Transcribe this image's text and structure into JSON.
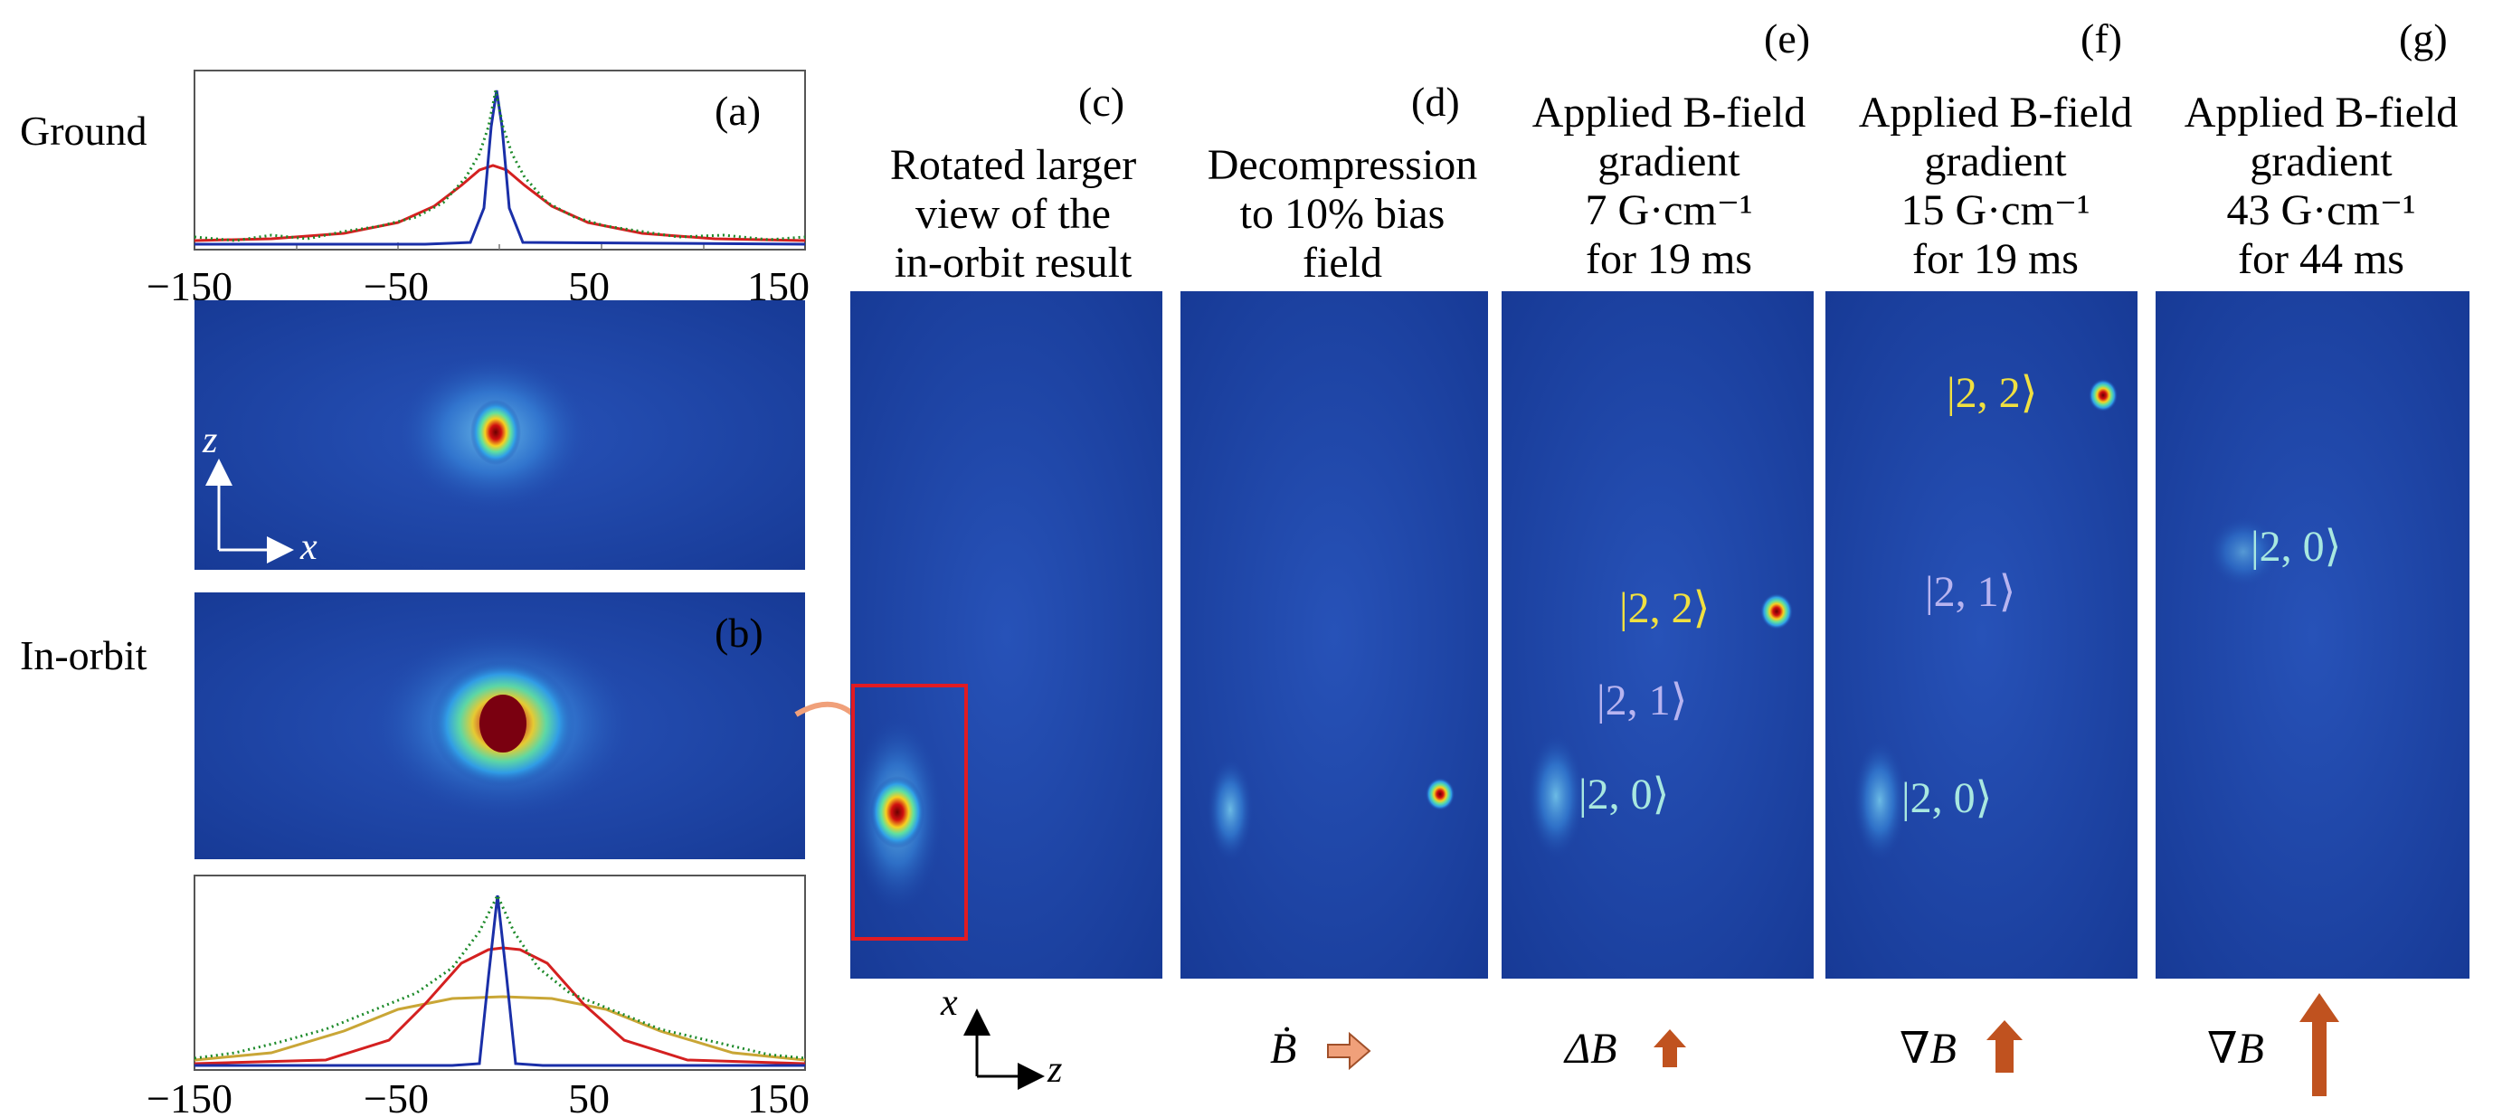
{
  "row_labels": {
    "ground": "Ground",
    "in_orbit": "In-orbit"
  },
  "panels": {
    "a": {
      "tag": "(a)"
    },
    "b": {
      "tag": "(b)"
    },
    "c": {
      "tag": "(c)",
      "title": [
        "Rotated larger",
        "view of the",
        "in-orbit result"
      ]
    },
    "d": {
      "tag": "(d)",
      "title": [
        "Decompression",
        "to 10% bias",
        "field"
      ]
    },
    "e": {
      "tag": "(e)",
      "title": [
        "Applied B-field",
        "gradient",
        "7 G·cm⁻¹",
        "for 19 ms"
      ]
    },
    "f": {
      "tag": "(f)",
      "title": [
        "Applied B-field",
        "gradient",
        "15 G·cm⁻¹",
        "for 19 ms"
      ]
    },
    "g": {
      "tag": "(g)",
      "title": [
        "Applied B-field",
        "gradient",
        "43 G·cm⁻¹",
        "for 44 ms"
      ]
    }
  },
  "state_labels": {
    "s22": "|2, 2⟩",
    "s21": "|2, 1⟩",
    "s20": "|2, 0⟩"
  },
  "axes": {
    "z": "z",
    "x": "x"
  },
  "bottom_symbols": {
    "d": "Ḃ",
    "e": "ΔB",
    "f": "∇B",
    "g": "∇B"
  },
  "plot_ticks": [
    "−150",
    "−50",
    "50",
    "150"
  ],
  "colors": {
    "image_bg": "#1c45a8",
    "fit_blue": "#1a2fa8",
    "fit_red": "#d42020",
    "fit_yellow": "#c9a636",
    "data_green": "#1d8a2a",
    "highlight_box": "#e11b22",
    "arrow_orange": "#c0521f",
    "arrow_light": "#f0a07a",
    "label_yellow": "#f0e040",
    "label_lavender": "#b8b4f0",
    "label_cyan": "#a8e8e0"
  }
}
